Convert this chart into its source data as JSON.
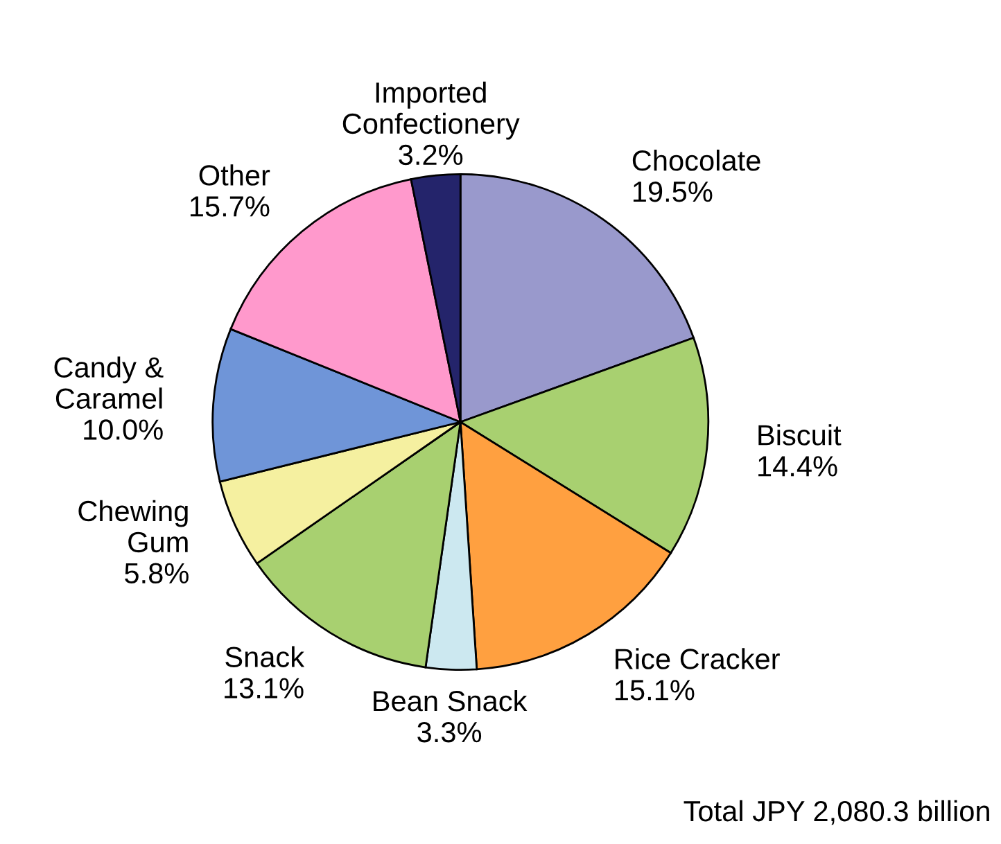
{
  "chart_data": {
    "type": "pie",
    "categories": [
      "Chocolate",
      "Biscuit",
      "Rice Cracker",
      "Bean Snack",
      "Snack",
      "Chewing\nGum",
      "Candy &\nCaramel",
      "Other",
      "Imported\nConfectionery"
    ],
    "values": [
      19.5,
      14.4,
      15.1,
      3.3,
      13.1,
      5.8,
      10.0,
      15.7,
      3.2
    ],
    "colors": [
      "#9999cc",
      "#a8d070",
      "#ffa040",
      "#cce8f0",
      "#a8d070",
      "#f5f0a0",
      "#6f95d8",
      "#ff99cc",
      "#24246b"
    ],
    "value_labels": [
      "19.5%",
      "14.4%",
      "15.1%",
      "3.3%",
      "13.1%",
      "5.8%",
      "10.0%",
      "15.7%",
      "3.2%"
    ],
    "annotations": [
      "Total JPY 2,080.3 billion"
    ]
  }
}
